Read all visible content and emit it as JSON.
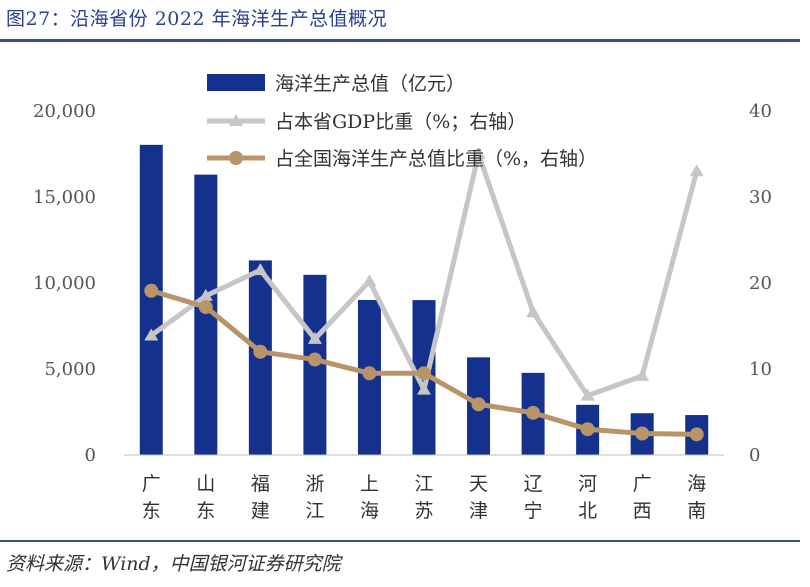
{
  "title": "图27：沿海省份 2022 年海洋生产总值概况",
  "source": "资料来源：Wind，中国银河证券研究院",
  "colors": {
    "bar": "#14318e",
    "gdp_share": "#c6c6c6",
    "national_share": "#b89468",
    "rule": "#3c4f9a"
  },
  "chart_data": {
    "type": "bar",
    "categories": [
      "广东",
      "山东",
      "福建",
      "浙江",
      "上海",
      "江苏",
      "天津",
      "辽宁",
      "河北",
      "广西",
      "海南"
    ],
    "series": [
      {
        "name": "海洋生产总值（亿元）",
        "type": "bar",
        "axis": "left",
        "values": [
          18033,
          16302,
          11314,
          10475,
          9012,
          9007,
          5676,
          4776,
          2918,
          2429,
          2322
        ]
      },
      {
        "name": "占本省GDP比重（%；右轴）",
        "type": "line",
        "axis": "right",
        "values": [
          13.9,
          18.5,
          21.5,
          13.5,
          20.2,
          7.6,
          35.0,
          16.6,
          6.9,
          9.2,
          33.0
        ]
      },
      {
        "name": "占全国海洋生产总值比重（%，右轴）",
        "type": "line",
        "axis": "right",
        "values": [
          19.1,
          17.2,
          12.0,
          11.1,
          9.5,
          9.5,
          5.9,
          4.9,
          3.0,
          2.5,
          2.4
        ]
      }
    ],
    "ylim_left": [
      0,
      20000
    ],
    "yticks_left": [
      "0",
      "5,000",
      "10,000",
      "15,000",
      "20,000"
    ],
    "ylim_right": [
      0,
      40
    ],
    "yticks_right": [
      "0",
      "10",
      "20",
      "30",
      "40"
    ],
    "legend_position": "top"
  }
}
